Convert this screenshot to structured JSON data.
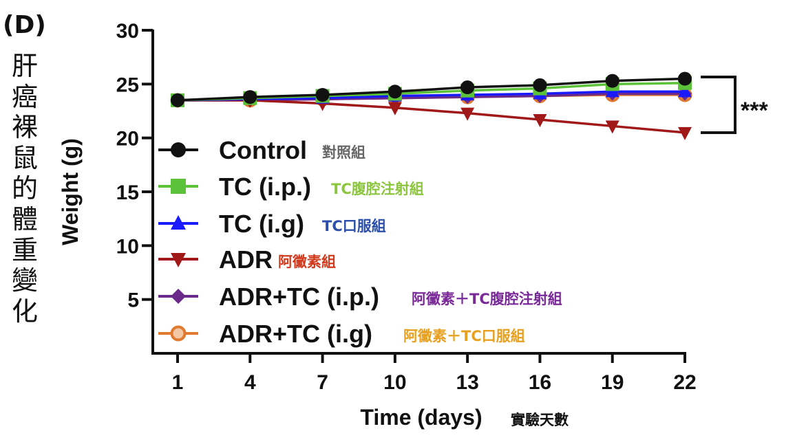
{
  "panel_label": "(D)",
  "side_title": "肝癌裸鼠的體重變化",
  "chart_data": {
    "type": "line",
    "x": [
      1,
      4,
      7,
      10,
      13,
      16,
      19,
      22
    ],
    "xlabel": "Time (days)",
    "xlabel_cn": "實驗天數",
    "ylabel": "Weight (g)",
    "ylim": [
      0,
      30
    ],
    "yticks": [
      5,
      10,
      15,
      20,
      25,
      30
    ],
    "xtick_labels": [
      "1",
      "4",
      "7",
      "10",
      "13",
      "16",
      "19",
      "22"
    ],
    "ytick_labels": [
      "5",
      "10",
      "15",
      "20",
      "25",
      "30"
    ],
    "legend_position": "left-center",
    "significance": "***",
    "series": [
      {
        "name": "Control",
        "name_cn": "對照組",
        "color": "#111111",
        "cn_color": "#666666",
        "marker": "circle",
        "values": [
          23.5,
          23.8,
          24.0,
          24.3,
          24.7,
          24.9,
          25.3,
          25.5
        ]
      },
      {
        "name": "TC (i.p.)",
        "name_cn": "TC腹腔注射組",
        "color": "#5cc23a",
        "cn_color": "#8cc63e",
        "marker": "square",
        "values": [
          23.5,
          23.7,
          23.9,
          24.1,
          24.4,
          24.6,
          25.0,
          25.1
        ]
      },
      {
        "name": "TC (i.g)",
        "name_cn": "TC口服組",
        "color": "#1a1aff",
        "cn_color": "#2b4fa8",
        "marker": "triangle-up",
        "values": [
          23.5,
          23.6,
          23.7,
          23.9,
          24.0,
          24.1,
          24.3,
          24.3
        ]
      },
      {
        "name": "ADR",
        "name_cn": "阿黴素組",
        "color": "#a01818",
        "cn_color": "#d23a1e",
        "marker": "triangle-down",
        "values": [
          23.5,
          23.5,
          23.2,
          22.8,
          22.3,
          21.7,
          21.1,
          20.5
        ]
      },
      {
        "name": "ADR+TC (i.p.)",
        "name_cn": "阿黴素＋TC腹腔注射組",
        "color": "#6a2a8c",
        "cn_color": "#7a2a98",
        "marker": "diamond",
        "values": [
          23.5,
          23.5,
          23.6,
          23.7,
          23.8,
          23.9,
          24.1,
          24.1
        ]
      },
      {
        "name": "ADR+TC (i.g)",
        "name_cn": "阿黴素＋TC口服組",
        "color": "#e07a30",
        "cn_color": "#e8a020",
        "marker": "circle-open",
        "values": [
          23.5,
          23.5,
          23.6,
          23.7,
          23.8,
          23.9,
          24.0,
          24.0
        ]
      }
    ]
  }
}
